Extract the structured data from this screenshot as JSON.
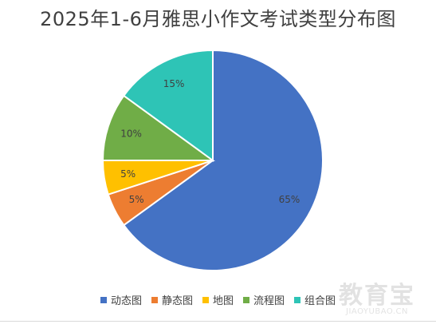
{
  "chart_data": {
    "type": "pie",
    "title": "2025年1-6月雅思小作文考试类型分布图",
    "categories": [
      "动态图",
      "静态图",
      "地图",
      "流程图",
      "组合图"
    ],
    "values": [
      65,
      5,
      5,
      10,
      15
    ],
    "value_labels": [
      "65%",
      "5%",
      "5%",
      "10%",
      "15%"
    ],
    "colors": [
      "#4472C4",
      "#ED7D31",
      "#FFC000",
      "#70AD47",
      "#2EC4B6"
    ],
    "start_angle": "12 o'clock",
    "direction": "clockwise",
    "legend": "bottom"
  },
  "watermark": {
    "main": "教育宝",
    "sub": "JIAOYUBAO.CN"
  }
}
